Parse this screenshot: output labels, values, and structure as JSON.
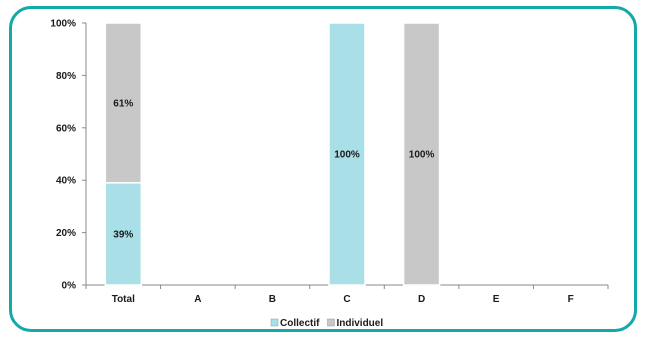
{
  "chart_data": {
    "type": "bar",
    "stacked": true,
    "percent": true,
    "categories": [
      "Total",
      "A",
      "B",
      "C",
      "D",
      "E",
      "F"
    ],
    "series": [
      {
        "name": "Collectif",
        "color": "#a9dfe6",
        "values": [
          39,
          0,
          0,
          100,
          0,
          0,
          0
        ]
      },
      {
        "name": "Individuel",
        "color": "#c8c8c8",
        "values": [
          61,
          0,
          0,
          0,
          100,
          0,
          0
        ]
      }
    ],
    "data_labels": [
      {
        "category": "Total",
        "series": "Collectif",
        "text": "39%"
      },
      {
        "category": "Total",
        "series": "Individuel",
        "text": "61%"
      },
      {
        "category": "C",
        "series": "Collectif",
        "text": "100%"
      },
      {
        "category": "D",
        "series": "Individuel",
        "text": "100%"
      }
    ],
    "y_ticks": [
      "0%",
      "20%",
      "40%",
      "60%",
      "80%",
      "100%"
    ],
    "ylim": [
      0,
      100
    ],
    "grid": false,
    "legend_position": "bottom",
    "frame_color": "#12a9a7",
    "title": "",
    "xlabel": "",
    "ylabel": ""
  }
}
